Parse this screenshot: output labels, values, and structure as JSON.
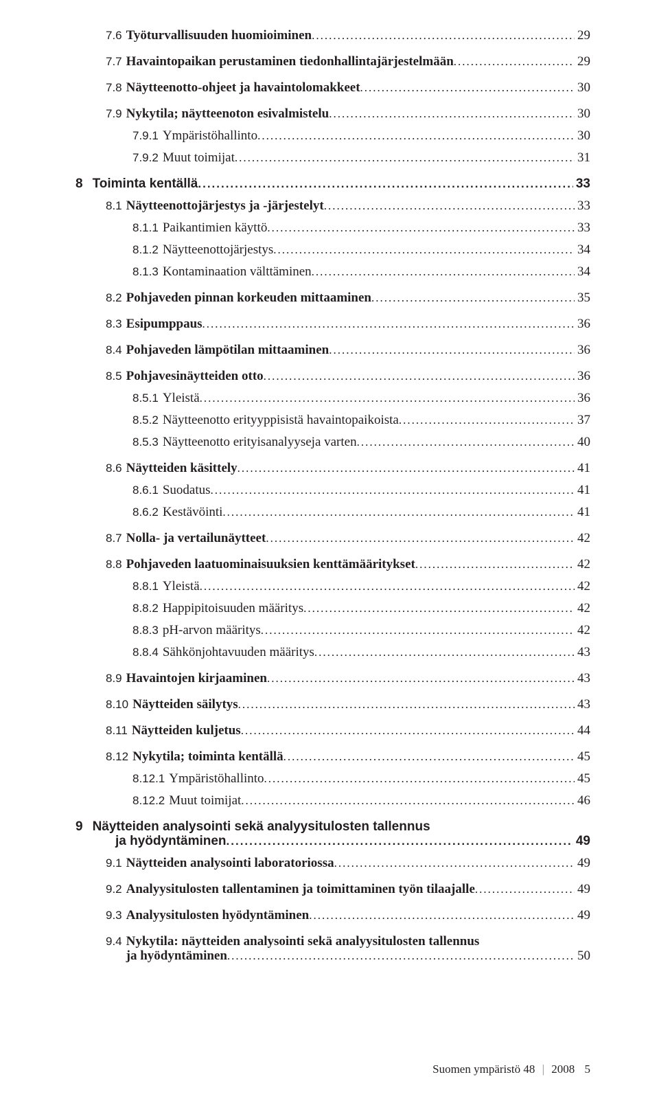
{
  "toc": [
    {
      "lvl": "s1",
      "b": 1,
      "num": "7.6",
      "txt": "Työturvallisuuden huomioiminen",
      "pg": "29"
    },
    {
      "lvl": "s1",
      "b": 1,
      "num": "7.7",
      "txt": "Havaintopaikan perustaminen tiedonhallintajärjestelmään",
      "pg": "29"
    },
    {
      "lvl": "s1",
      "b": 1,
      "num": "7.8",
      "txt": "Näytteenotto-ohjeet ja havaintolomakkeet",
      "pg": "30"
    },
    {
      "lvl": "s1",
      "b": 1,
      "num": "7.9",
      "txt": "Nykytila; näytteenoton esivalmistelu",
      "pg": "30"
    },
    {
      "lvl": "s2",
      "num": "7.9.1",
      "txt": "Ympäristöhallinto",
      "pg": "30"
    },
    {
      "lvl": "s2",
      "num": "7.9.2",
      "txt": "Muut toimijat",
      "pg": "31"
    },
    {
      "lvl": "ch",
      "num": "8",
      "txt": "Toiminta kentällä",
      "pg": "33"
    },
    {
      "lvl": "s1",
      "b": 1,
      "num": "8.1",
      "txt": "Näytteenottojärjestys ja -järjestelyt",
      "pg": "33"
    },
    {
      "lvl": "s2",
      "num": "8.1.1",
      "txt": "Paikantimien käyttö",
      "pg": "33"
    },
    {
      "lvl": "s2",
      "num": "8.1.2",
      "txt": "Näytteenottojärjestys",
      "pg": "34"
    },
    {
      "lvl": "s2",
      "num": "8.1.3",
      "txt": "Kontaminaation välttäminen",
      "pg": "34"
    },
    {
      "lvl": "s1",
      "b": 1,
      "num": "8.2",
      "txt": "Pohjaveden pinnan korkeuden mittaaminen",
      "pg": "35"
    },
    {
      "lvl": "s1",
      "b": 1,
      "num": "8.3",
      "txt": "Esipumppaus",
      "pg": "36"
    },
    {
      "lvl": "s1",
      "b": 1,
      "num": "8.4",
      "txt": "Pohjaveden lämpötilan mittaaminen",
      "pg": "36"
    },
    {
      "lvl": "s1",
      "b": 1,
      "num": "8.5",
      "txt": "Pohjavesinäytteiden otto",
      "pg": "36"
    },
    {
      "lvl": "s2",
      "num": "8.5.1",
      "txt": "Yleistä",
      "pg": "36"
    },
    {
      "lvl": "s2",
      "num": "8.5.2",
      "txt": "Näytteenotto erityyppisistä havaintopaikoista",
      "pg": "37"
    },
    {
      "lvl": "s2",
      "num": "8.5.3",
      "txt": "Näytteenotto erityisanalyyseja varten",
      "pg": "40"
    },
    {
      "lvl": "s1",
      "b": 1,
      "num": "8.6",
      "txt": "Näytteiden käsittely",
      "pg": "41"
    },
    {
      "lvl": "s2",
      "num": "8.6.1",
      "txt": "Suodatus",
      "pg": "41"
    },
    {
      "lvl": "s2",
      "num": "8.6.2",
      "txt": "Kestävöinti",
      "pg": "41"
    },
    {
      "lvl": "s1",
      "b": 1,
      "num": "8.7",
      "txt": "Nolla- ja vertailunäytteet",
      "pg": "42"
    },
    {
      "lvl": "s1",
      "b": 1,
      "num": "8.8",
      "txt": "Pohjaveden laatuominaisuuksien kenttämääritykset",
      "pg": "42"
    },
    {
      "lvl": "s2",
      "num": "8.8.1",
      "txt": "Yleistä",
      "pg": "42"
    },
    {
      "lvl": "s2",
      "num": "8.8.2",
      "txt": "Happipitoisuuden määritys",
      "pg": "42"
    },
    {
      "lvl": "s2",
      "num": "8.8.3",
      "txt": "pH-arvon määritys",
      "pg": "42"
    },
    {
      "lvl": "s2",
      "num": "8.8.4",
      "txt": "Sähkönjohtavuuden määritys",
      "pg": "43"
    },
    {
      "lvl": "s1",
      "b": 1,
      "num": "8.9",
      "txt": "Havaintojen kirjaaminen",
      "pg": "43"
    },
    {
      "lvl": "s1",
      "b": 1,
      "num": "8.10",
      "txt": "Näytteiden säilytys",
      "pg": "43"
    },
    {
      "lvl": "s1",
      "b": 1,
      "num": "8.11",
      "txt": "Näytteiden kuljetus",
      "pg": "44"
    },
    {
      "lvl": "s1",
      "b": 1,
      "num": "8.12",
      "txt": "Nykytila; toiminta kentällä",
      "pg": "45"
    },
    {
      "lvl": "s2",
      "num": "8.12.1",
      "txt": "Ympäristöhallinto",
      "pg": "45"
    },
    {
      "lvl": "s2",
      "num": "8.12.2",
      "txt": "Muut toimijat",
      "pg": "46"
    },
    {
      "lvl": "ch",
      "num": "9",
      "txt": "Näytteiden analysointi sekä analyysitulosten tallennus",
      "cont": "ja hyödyntäminen",
      "pg": "49"
    },
    {
      "lvl": "s1",
      "b": 1,
      "num": "9.1",
      "txt": "Näytteiden analysointi laboratoriossa",
      "pg": "49"
    },
    {
      "lvl": "s1",
      "b": 1,
      "num": "9.2",
      "txt": "Analyysitulosten tallentaminen ja toimittaminen työn tilaajalle",
      "pg": "49"
    },
    {
      "lvl": "s1",
      "b": 1,
      "num": "9.3",
      "txt": "Analyysitulosten hyödyntäminen",
      "pg": "49"
    },
    {
      "lvl": "s1",
      "b": 1,
      "num": "9.4",
      "txt": "Nykytila: näytteiden analysointi sekä analyysitulosten tallennus",
      "cont": "ja hyödyntäminen",
      "pg": "50"
    }
  ],
  "footer": {
    "series": "Suomen ympäristö",
    "issue": "48",
    "year": "2008",
    "page": "5"
  }
}
